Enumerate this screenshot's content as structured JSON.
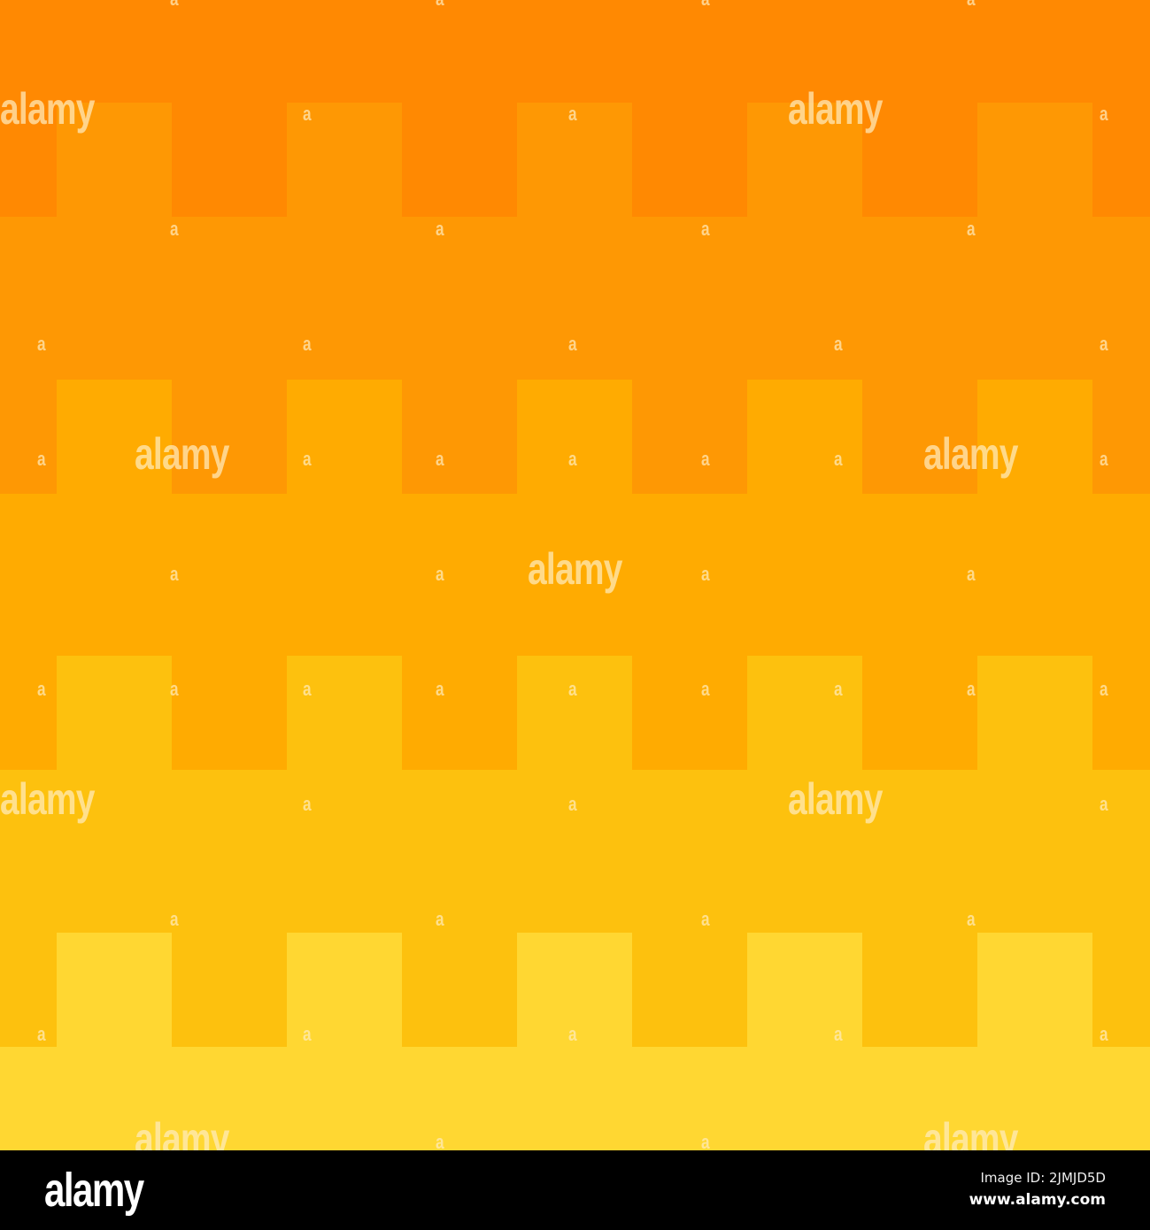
{
  "image": {
    "colors": [
      "#FF8902",
      "#FE9804",
      "#FFAB01",
      "#FDC10E",
      "#FFD732"
    ],
    "watermark_text": "alamy",
    "watermark_mark": "a"
  },
  "footer": {
    "logo": "alamy",
    "image_id": "Image ID: 2JMJD5D",
    "website": "www.alamy.com"
  }
}
